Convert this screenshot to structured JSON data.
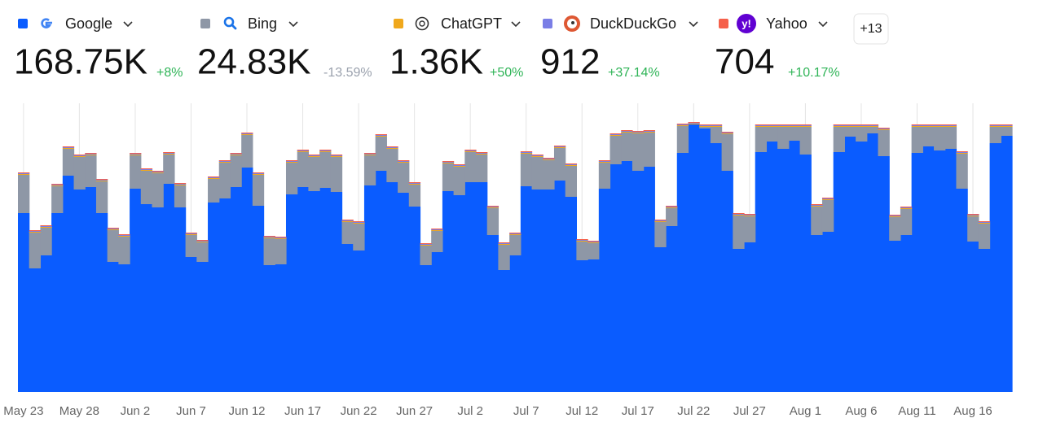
{
  "chart_data": {
    "type": "stacked-step-area",
    "more_button": "+13",
    "categories": [
      "May 23",
      null,
      null,
      null,
      null,
      "May 28",
      null,
      null,
      null,
      null,
      "Jun 2",
      null,
      null,
      null,
      null,
      "Jun 7",
      null,
      null,
      null,
      null,
      "Jun 12",
      null,
      null,
      null,
      null,
      "Jun 17",
      null,
      null,
      null,
      null,
      "Jun 22",
      null,
      null,
      null,
      null,
      "Jun 27",
      null,
      null,
      null,
      null,
      "Jul 2",
      null,
      null,
      null,
      null,
      "Jul 7",
      null,
      null,
      null,
      null,
      "Jul 12",
      null,
      null,
      null,
      null,
      "Jul 17",
      null,
      null,
      null,
      null,
      "Jul 22",
      null,
      null,
      null,
      null,
      "Jul 27",
      null,
      null,
      null,
      null,
      "Aug 1",
      null,
      null,
      null,
      null,
      "Aug 6",
      null,
      null,
      null,
      null,
      "Aug 11",
      null,
      null,
      null,
      null,
      "Aug 16",
      null,
      null,
      null
    ],
    "ylim": [
      0,
      355
    ],
    "x_grid": true,
    "series": [
      {
        "name": "Google",
        "color": "#0a5cff",
        "total": "168.75K",
        "change": "+8%",
        "change_color": "#2fb457",
        "values": [
          220,
          152,
          168,
          220,
          266,
          249,
          252,
          220,
          160,
          157,
          250,
          231,
          227,
          256,
          227,
          166,
          160,
          233,
          238,
          252,
          276,
          229,
          156,
          157,
          243,
          252,
          247,
          251,
          246,
          182,
          174,
          254,
          272,
          258,
          245,
          228,
          156,
          172,
          247,
          242,
          258,
          258,
          193,
          150,
          168,
          253,
          249,
          249,
          260,
          240,
          162,
          163,
          250,
          280,
          284,
          272,
          277,
          178,
          204,
          294,
          329,
          324,
          306,
          272,
          176,
          184,
          295,
          308,
          299,
          309,
          292,
          193,
          197,
          295,
          314,
          308,
          318,
          290,
          186,
          193,
          294,
          302,
          297,
          299,
          250,
          185,
          176,
          306,
          315
        ]
      },
      {
        "name": "Bing",
        "color": "#8e97a6",
        "total": "24.83K",
        "change": "-13.59%",
        "change_color": "#9aa1ad",
        "values": [
          47,
          44,
          34,
          33,
          33,
          40,
          39,
          39,
          39,
          34,
          41,
          41,
          42,
          36,
          27,
          27,
          24,
          29,
          44,
          39,
          40,
          38,
          33,
          31,
          39,
          43,
          42,
          44,
          43,
          27,
          33,
          37,
          42,
          41,
          37,
          27,
          24,
          26,
          34,
          35,
          37,
          34,
          33,
          31,
          25,
          40,
          40,
          36,
          40,
          38,
          23,
          20,
          32,
          35,
          35,
          46,
          42,
          31,
          22,
          33,
          0,
          2,
          20,
          45,
          41,
          32,
          31,
          18,
          27,
          17,
          34,
          35,
          39,
          31,
          12,
          18,
          8,
          32,
          29,
          32,
          32,
          24,
          29,
          27,
          43,
          31,
          31,
          20,
          11
        ]
      },
      {
        "name": "ChatGPT",
        "color": "#f0a81c",
        "total": "1.36K",
        "change": "+50%",
        "change_color": "#2fb457",
        "values": [
          1,
          1,
          1,
          1,
          1,
          1,
          1,
          1,
          1,
          1,
          1,
          1,
          1,
          1,
          1,
          1,
          1,
          1,
          1,
          1,
          1,
          1,
          1,
          1,
          1,
          1,
          1,
          1,
          1,
          1,
          1,
          1,
          1,
          1,
          1,
          1,
          1,
          1,
          1,
          1,
          1,
          1,
          1,
          1,
          1,
          1,
          1,
          1,
          1,
          1,
          1,
          1,
          1,
          1,
          1,
          1,
          1,
          1,
          1,
          1,
          1,
          1,
          1,
          1,
          1,
          1,
          1,
          1,
          1,
          1,
          1,
          1,
          1,
          1,
          1,
          1,
          1,
          1,
          1,
          1,
          1,
          1,
          1,
          1,
          1,
          1,
          1,
          1,
          1
        ]
      },
      {
        "name": "DuckDuckGo",
        "color": "#7a7ee6",
        "total": "912",
        "change": "+37.14%",
        "change_color": "#2fb457",
        "values": [
          1,
          1,
          1,
          1,
          1,
          1,
          1,
          1,
          1,
          1,
          1,
          1,
          1,
          1,
          1,
          1,
          1,
          1,
          1,
          1,
          1,
          1,
          1,
          1,
          1,
          1,
          1,
          1,
          1,
          1,
          1,
          1,
          1,
          1,
          1,
          1,
          1,
          1,
          1,
          1,
          1,
          1,
          1,
          1,
          1,
          1,
          1,
          1,
          1,
          1,
          1,
          1,
          1,
          1,
          1,
          1,
          1,
          1,
          1,
          1,
          1,
          1,
          1,
          1,
          1,
          1,
          1,
          1,
          1,
          1,
          1,
          1,
          1,
          1,
          1,
          1,
          1,
          1,
          1,
          1,
          1,
          1,
          1,
          1,
          1,
          1,
          1,
          1,
          1
        ]
      },
      {
        "name": "Yahoo",
        "color": "#f5604a",
        "total": "704",
        "change": "+10.17%",
        "change_color": "#2fb457",
        "values": [
          1,
          1,
          1,
          1,
          1,
          1,
          1,
          1,
          1,
          1,
          1,
          1,
          1,
          1,
          1,
          1,
          1,
          1,
          1,
          1,
          1,
          1,
          1,
          1,
          1,
          1,
          1,
          1,
          1,
          1,
          1,
          1,
          1,
          1,
          1,
          1,
          1,
          1,
          1,
          1,
          1,
          1,
          1,
          1,
          1,
          1,
          1,
          1,
          1,
          1,
          1,
          1,
          1,
          1,
          1,
          1,
          1,
          1,
          1,
          1,
          1,
          1,
          1,
          1,
          1,
          1,
          1,
          1,
          1,
          1,
          1,
          1,
          1,
          1,
          1,
          1,
          1,
          1,
          1,
          1,
          1,
          1,
          1,
          1,
          1,
          1,
          1,
          1,
          1
        ]
      }
    ]
  }
}
